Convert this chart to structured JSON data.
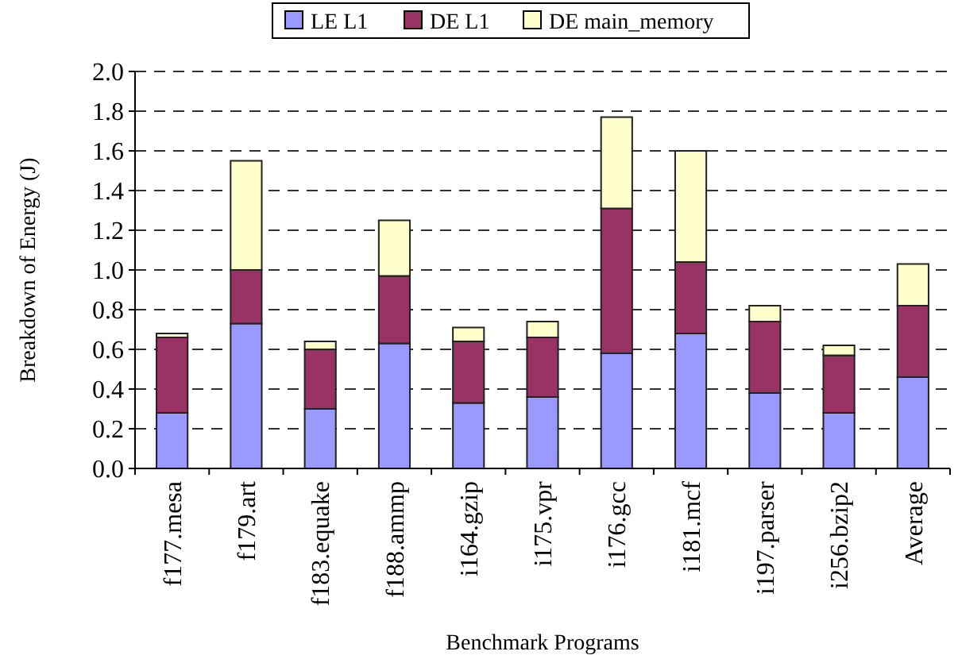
{
  "chart_data": {
    "type": "bar",
    "stacked": true,
    "xlabel": "Benchmark Programs",
    "ylabel": "Breakdown of Energy (J)",
    "categories": [
      "f177.mesa",
      "f179.art",
      "f183.equake",
      "f188.ammp",
      "i164.gzip",
      "i175.vpr",
      "i176.gcc",
      "i181.mcf",
      "i197.parser",
      "i256.bzip2",
      "Average"
    ],
    "series": [
      {
        "name": "LE L1",
        "color": "#9999ff",
        "values": [
          0.28,
          0.73,
          0.3,
          0.63,
          0.33,
          0.36,
          0.58,
          0.68,
          0.38,
          0.28,
          0.46
        ]
      },
      {
        "name": "DE L1",
        "color": "#993366",
        "values": [
          0.38,
          0.27,
          0.3,
          0.34,
          0.31,
          0.3,
          0.73,
          0.36,
          0.36,
          0.29,
          0.36
        ]
      },
      {
        "name": "DE main_memory",
        "color": "#ffffcc",
        "values": [
          0.02,
          0.55,
          0.04,
          0.28,
          0.07,
          0.08,
          0.46,
          0.56,
          0.08,
          0.05,
          0.21
        ]
      }
    ],
    "ylim": [
      0,
      2.0
    ],
    "yticks": [
      {
        "value": 0,
        "label": "0.0"
      },
      {
        "value": 0.2,
        "label": "0.2"
      },
      {
        "value": 0.4,
        "label": "0.4"
      },
      {
        "value": 0.6,
        "label": "0.6"
      },
      {
        "value": 0.8,
        "label": "0.8"
      },
      {
        "value": 1.0,
        "label": "1.0"
      },
      {
        "value": 1.2,
        "label": "1.2"
      },
      {
        "value": 1.4,
        "label": "1.4"
      },
      {
        "value": 1.6,
        "label": "1.6"
      },
      {
        "value": 1.8,
        "label": "1.8"
      },
      {
        "value": 2.0,
        "label": "2.0"
      }
    ],
    "grid": "y",
    "legend": "top"
  }
}
